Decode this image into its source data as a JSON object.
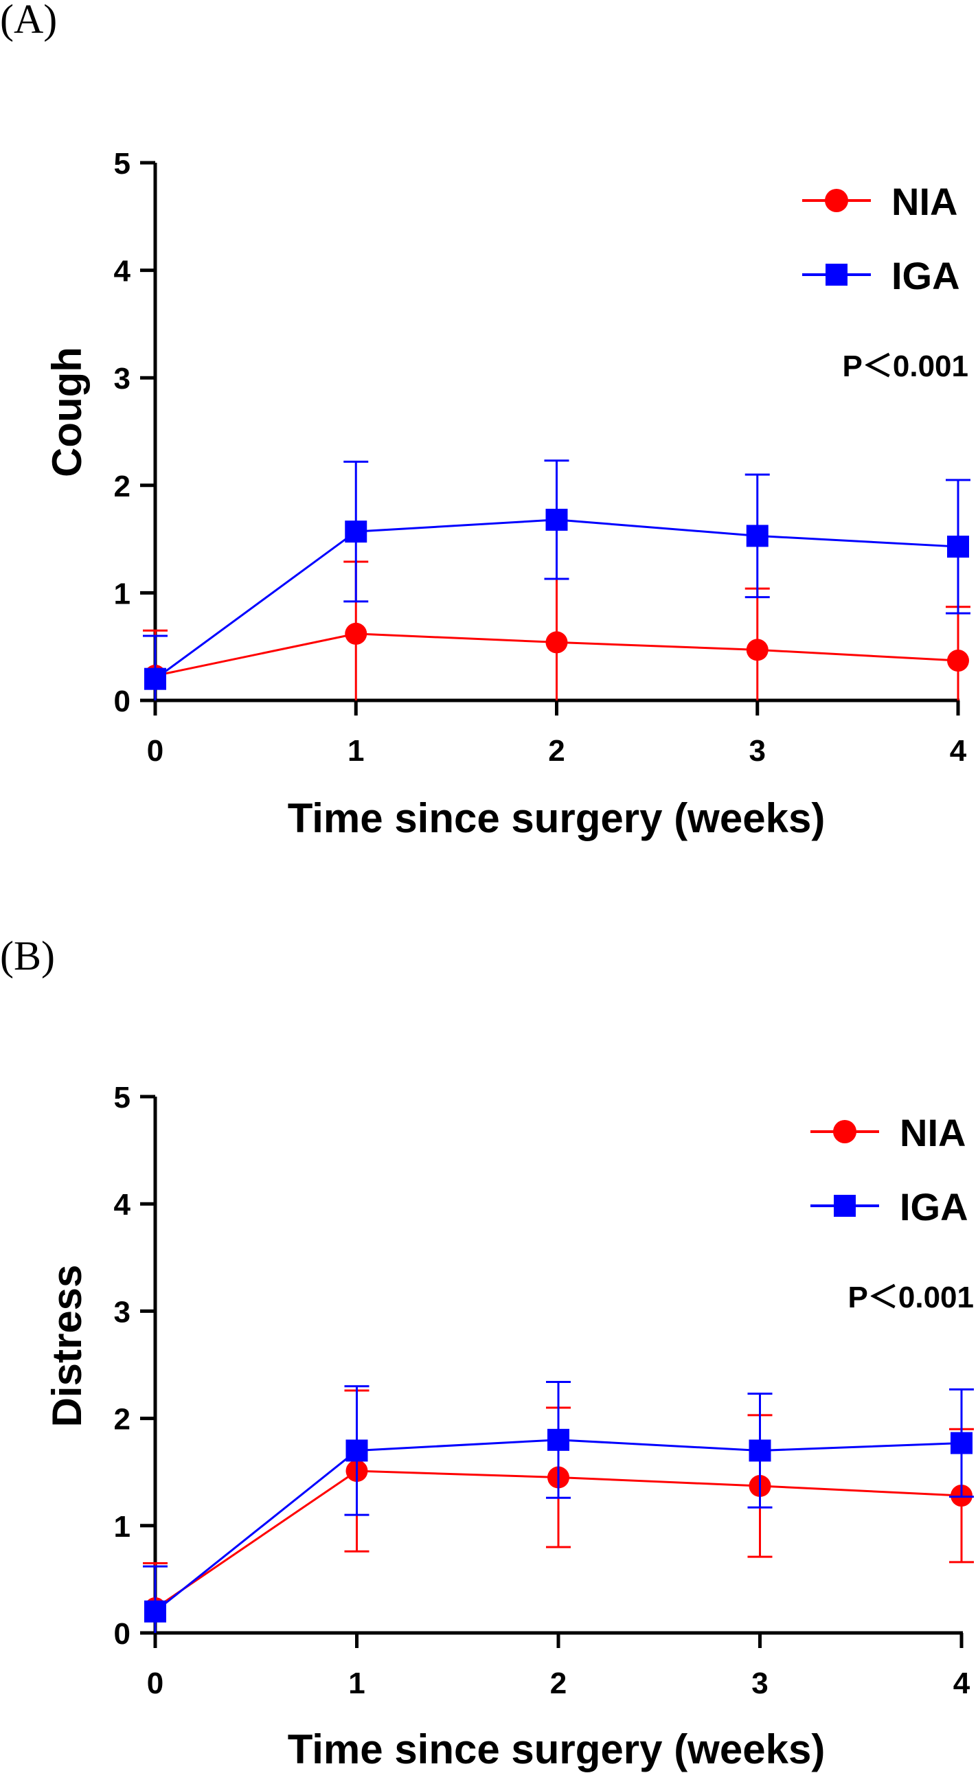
{
  "colors": {
    "NIA": "#ff0000",
    "IGA": "#0000ff",
    "axis": "#000000"
  },
  "chart_data": [
    {
      "type": "line",
      "panel_label": "(A)",
      "title": "",
      "xlabel": "Time since surgery (weeks)",
      "ylabel": "Cough",
      "x": [
        0,
        1,
        2,
        3,
        4
      ],
      "x_ticks": [
        "0",
        "1",
        "2",
        "3",
        "4"
      ],
      "ylim": [
        0,
        5
      ],
      "y_ticks": [
        "0",
        "1",
        "2",
        "3",
        "4",
        "5"
      ],
      "annotation": "P＜0.001",
      "legend_position": "top-right",
      "series": [
        {
          "name": "NIA",
          "marker": "circle",
          "values": [
            0.23,
            0.62,
            0.54,
            0.47,
            0.37
          ],
          "error": [
            0.42,
            0.67,
            0.59,
            0.57,
            0.5
          ]
        },
        {
          "name": "IGA",
          "marker": "square",
          "values": [
            0.2,
            1.57,
            1.68,
            1.53,
            1.43
          ],
          "error": [
            0.4,
            0.65,
            0.55,
            0.57,
            0.62
          ]
        }
      ]
    },
    {
      "type": "line",
      "panel_label": "(B)",
      "title": "",
      "xlabel": "Time since surgery (weeks)",
      "ylabel": "Distress",
      "x": [
        0,
        1,
        2,
        3,
        4
      ],
      "x_ticks": [
        "0",
        "1",
        "2",
        "3",
        "4"
      ],
      "ylim": [
        0,
        5
      ],
      "y_ticks": [
        "0",
        "1",
        "2",
        "3",
        "4",
        "5"
      ],
      "annotation": "P＜0.001",
      "legend_position": "top-right",
      "series": [
        {
          "name": "NIA",
          "marker": "circle",
          "values": [
            0.23,
            1.51,
            1.45,
            1.37,
            1.28
          ],
          "error": [
            0.42,
            0.75,
            0.65,
            0.66,
            0.62
          ]
        },
        {
          "name": "IGA",
          "marker": "square",
          "values": [
            0.2,
            1.7,
            1.8,
            1.7,
            1.77
          ],
          "error": [
            0.42,
            0.6,
            0.54,
            0.53,
            0.5
          ]
        }
      ]
    }
  ]
}
